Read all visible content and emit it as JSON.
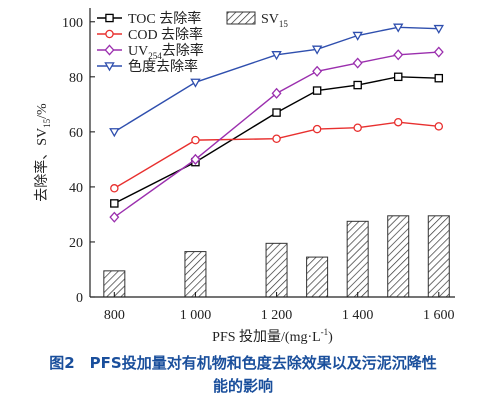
{
  "figure_caption": {
    "line1": "图2 PFS投加量对有机物和色度去除效果以及污泥沉降性",
    "line2": "能的影响"
  },
  "chart_data": {
    "type": "line",
    "x": [
      800,
      1000,
      1200,
      1300,
      1400,
      1500,
      1600
    ],
    "categories": [
      "800",
      "1 000",
      "1 200",
      "1 400",
      "1 600"
    ],
    "category_values": [
      800,
      1000,
      1200,
      1400,
      1600
    ],
    "xlabel": "PFS 投加量/(mg·L",
    "xlabel_sup": "-1",
    "xlabel_tail": ")",
    "ylabel": "去除率、SV",
    "ylabel_sub": "15",
    "ylabel_tail": "/%",
    "ylim": [
      0,
      105
    ],
    "yticks": [
      0,
      20,
      40,
      60,
      80,
      100
    ],
    "xlim": [
      740,
      1640
    ],
    "grid": false,
    "legend_position": "top-left",
    "series": [
      {
        "name": "TOC 去除率",
        "legend_main": "TOC 去除率",
        "color": "#000000",
        "marker": "square",
        "values": [
          34,
          49,
          67,
          75,
          77,
          80,
          79.5
        ]
      },
      {
        "name": "COD 去除率",
        "legend_main": "COD 去除率",
        "color": "#e8302f",
        "marker": "circle",
        "values": [
          39.5,
          57,
          57.5,
          61,
          61.5,
          63.5,
          62
        ]
      },
      {
        "name": "UV254 去除率",
        "legend_main": "UV",
        "legend_sub": "254",
        "legend_tail": "去除率",
        "color": "#9b2fae",
        "marker": "diamond",
        "values": [
          29,
          50,
          74,
          82,
          85,
          88,
          89
        ]
      },
      {
        "name": "色度去除率",
        "legend_main": "色度去除率",
        "color": "#2f4fae",
        "marker": "triangle-down",
        "values": [
          60,
          78,
          88,
          90,
          95,
          98,
          97.5
        ]
      }
    ],
    "bars": {
      "name": "SV15",
      "legend_main": "SV",
      "legend_sub": "15",
      "x": [
        800,
        1000,
        1200,
        1300,
        1400,
        1500,
        1600
      ],
      "values": [
        9.5,
        16.5,
        19.5,
        14.5,
        27.5,
        29.5,
        29.5
      ]
    }
  }
}
